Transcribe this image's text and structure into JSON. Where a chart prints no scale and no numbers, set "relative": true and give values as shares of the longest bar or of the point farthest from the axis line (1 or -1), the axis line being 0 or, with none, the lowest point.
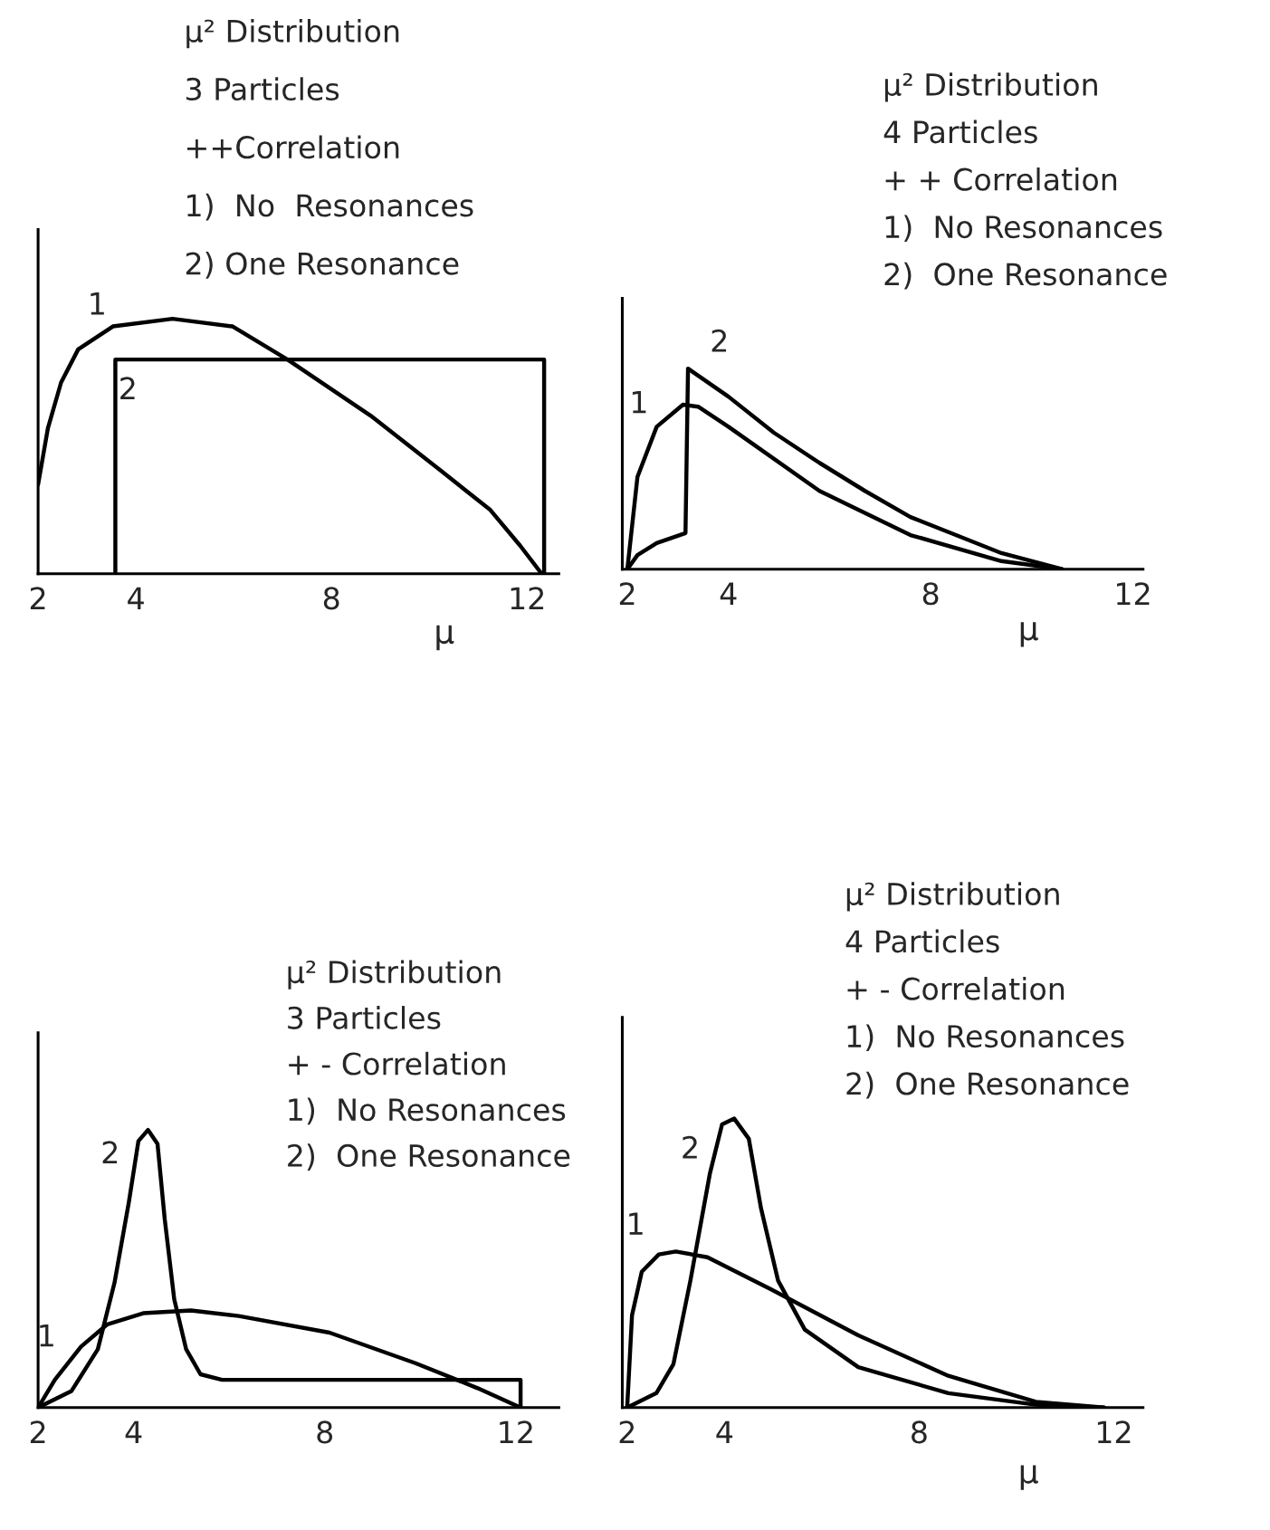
{
  "chart_data": [
    {
      "type": "line",
      "relative": true,
      "title": "μ² Distribution",
      "annotations": [
        "3 Particles",
        "++Correlation",
        "1)  No  Resonances",
        "2) One Resonance"
      ],
      "xlabel": "μ",
      "xlim": [
        2,
        12.65
      ],
      "xticks": [
        2,
        4,
        8,
        12
      ],
      "grid": false,
      "legend": false,
      "series": [
        {
          "name": "1",
          "color": "#000000",
          "x": [
            2,
            2.2,
            2.47,
            2.82,
            3.53,
            4.75,
            5.98,
            7.1,
            8.8,
            10.2,
            11.25,
            11.86,
            12.3
          ],
          "values": [
            0.35,
            0.57,
            0.75,
            0.88,
            0.97,
            1.0,
            0.97,
            0.84,
            0.62,
            0.41,
            0.25,
            0.11,
            0
          ]
        },
        {
          "name": "2",
          "color": "#000000",
          "x": [
            3.58,
            3.58,
            12.35,
            12.35
          ],
          "values": [
            0,
            0.84,
            0.84,
            0
          ]
        }
      ]
    },
    {
      "type": "line",
      "relative": true,
      "title": "μ² Distribution",
      "annotations": [
        "4 Particles",
        "+ + Correlation",
        "1)  No Resonances",
        "2)  One Resonance"
      ],
      "xlabel": "μ",
      "xlim": [
        1.9,
        12.2
      ],
      "xticks": [
        2,
        4,
        8,
        12
      ],
      "grid": false,
      "legend": false,
      "series": [
        {
          "name": "1",
          "color": "#000000",
          "x": [
            2,
            2.2,
            2.58,
            3.1,
            3.4,
            4.0,
            5.8,
            7.6,
            9.4,
            10.6
          ],
          "values": [
            0,
            0.46,
            0.71,
            0.82,
            0.81,
            0.71,
            0.39,
            0.17,
            0.04,
            0
          ]
        },
        {
          "name": "2",
          "color": "#000000",
          "x": [
            2,
            2.2,
            2.58,
            3.15,
            3.2,
            4.0,
            4.9,
            5.8,
            6.7,
            7.6,
            8.5,
            9.4,
            10.6
          ],
          "values": [
            0,
            0.07,
            0.13,
            0.18,
            1.0,
            0.86,
            0.68,
            0.53,
            0.39,
            0.26,
            0.17,
            0.08,
            0
          ]
        }
      ]
    },
    {
      "type": "line",
      "relative": true,
      "title": "μ² Distribution",
      "annotations": [
        "3 Particles",
        "+ - Correlation",
        "1)  No Resonances",
        "2)  One Resonance"
      ],
      "xlim": [
        2,
        12.9
      ],
      "xticks": [
        2,
        4,
        8,
        12
      ],
      "grid": false,
      "legend": false,
      "series": [
        {
          "name": "2",
          "color": "#000000",
          "x": [
            2,
            2.7,
            3.25,
            3.6,
            3.9,
            4.1,
            4.3,
            4.5,
            4.65,
            4.85,
            5.1,
            5.4,
            5.85,
            12.1,
            12.1
          ],
          "values": [
            0,
            0.06,
            0.21,
            0.45,
            0.74,
            0.96,
            1.0,
            0.95,
            0.68,
            0.39,
            0.21,
            0.12,
            0.1,
            0.1,
            0
          ]
        },
        {
          "name": "1",
          "color": "#000000",
          "x": [
            2,
            2.35,
            2.9,
            3.45,
            4.2,
            5.2,
            6.2,
            8.1,
            9.9,
            11.2,
            12.1
          ],
          "values": [
            0,
            0.1,
            0.22,
            0.3,
            0.34,
            0.35,
            0.33,
            0.27,
            0.16,
            0.07,
            0
          ]
        }
      ]
    },
    {
      "type": "line",
      "relative": true,
      "title": "μ² Distribution",
      "annotations": [
        "4 Particles",
        "+ - Correlation",
        "1)  No Resonances",
        "2)  One Resonance"
      ],
      "xlabel": "μ",
      "xlim": [
        1.9,
        12.6
      ],
      "xticks": [
        2,
        4,
        8,
        12
      ],
      "grid": false,
      "legend": false,
      "series": [
        {
          "name": "2",
          "color": "#000000",
          "x": [
            2,
            2.6,
            2.95,
            3.3,
            3.7,
            3.95,
            4.2,
            4.5,
            4.75,
            5.1,
            5.65,
            6.75,
            8.6,
            10.4,
            11.8
          ],
          "values": [
            0,
            0.05,
            0.15,
            0.44,
            0.81,
            0.98,
            1.0,
            0.93,
            0.69,
            0.44,
            0.27,
            0.14,
            0.05,
            0.01,
            0
          ]
        },
        {
          "name": "1",
          "color": "#000000",
          "x": [
            2,
            2.1,
            2.3,
            2.65,
            3.0,
            3.65,
            4.95,
            6.75,
            8.6,
            10.4,
            11.8
          ],
          "values": [
            0,
            0.32,
            0.47,
            0.53,
            0.54,
            0.52,
            0.41,
            0.25,
            0.11,
            0.02,
            0
          ]
        }
      ]
    }
  ]
}
